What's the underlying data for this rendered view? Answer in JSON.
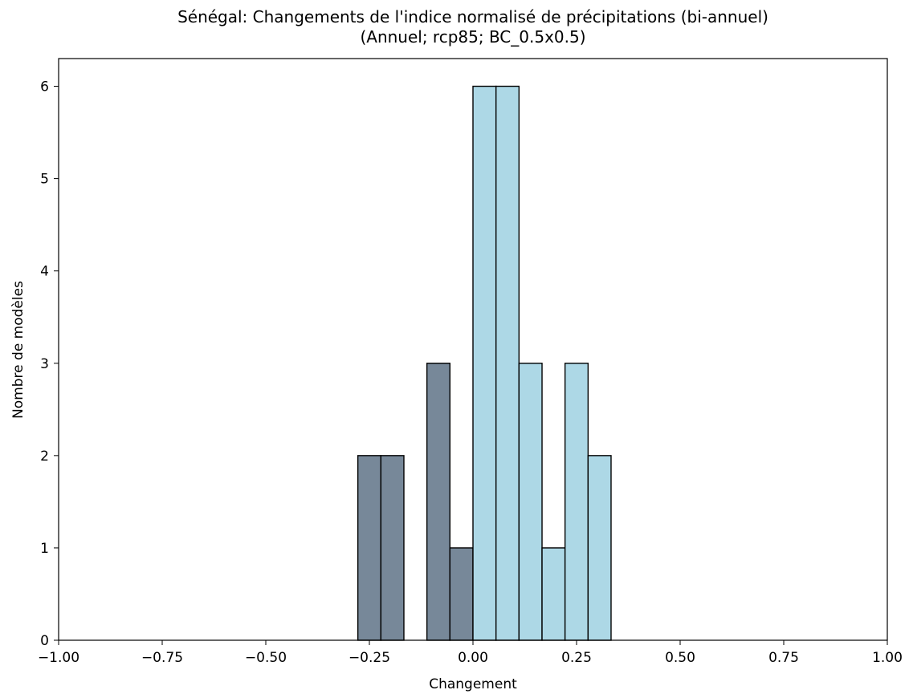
{
  "chart_data": {
    "type": "bar",
    "title": "Sénégal: Changements de l'indice normalisé de précipitations (bi-annuel)",
    "subtitle": "(Annuel; rcp85; BC_0.5x0.5)",
    "xlabel": "Changement",
    "ylabel": "Nombre de modèles",
    "xlim": [
      -1.0,
      1.0
    ],
    "ylim": [
      0,
      6.3
    ],
    "xticks": [
      "−1.00",
      "−0.75",
      "−0.50",
      "−0.25",
      "0.00",
      "0.25",
      "0.50",
      "0.75",
      "1.00"
    ],
    "yticks": [
      "0",
      "1",
      "2",
      "3",
      "4",
      "5",
      "6"
    ],
    "grid": false,
    "colors": {
      "negative": "#778899",
      "positive": "#add8e6",
      "edge": "#000000"
    },
    "bins": [
      {
        "x0": -0.2778,
        "x1": -0.2222,
        "count": 2,
        "group": "negative"
      },
      {
        "x0": -0.2222,
        "x1": -0.1667,
        "count": 2,
        "group": "negative"
      },
      {
        "x0": -0.1667,
        "x1": -0.1111,
        "count": 0,
        "group": "negative"
      },
      {
        "x0": -0.1111,
        "x1": -0.0556,
        "count": 3,
        "group": "negative"
      },
      {
        "x0": -0.0556,
        "x1": 0.0,
        "count": 1,
        "group": "negative"
      },
      {
        "x0": 0.0,
        "x1": 0.0556,
        "count": 6,
        "group": "positive"
      },
      {
        "x0": 0.0556,
        "x1": 0.1111,
        "count": 6,
        "group": "positive"
      },
      {
        "x0": 0.1111,
        "x1": 0.1667,
        "count": 3,
        "group": "positive"
      },
      {
        "x0": 0.1667,
        "x1": 0.2222,
        "count": 1,
        "group": "positive"
      },
      {
        "x0": 0.2222,
        "x1": 0.2778,
        "count": 3,
        "group": "positive"
      },
      {
        "x0": 0.2778,
        "x1": 0.3333,
        "count": 2,
        "group": "positive"
      }
    ]
  }
}
